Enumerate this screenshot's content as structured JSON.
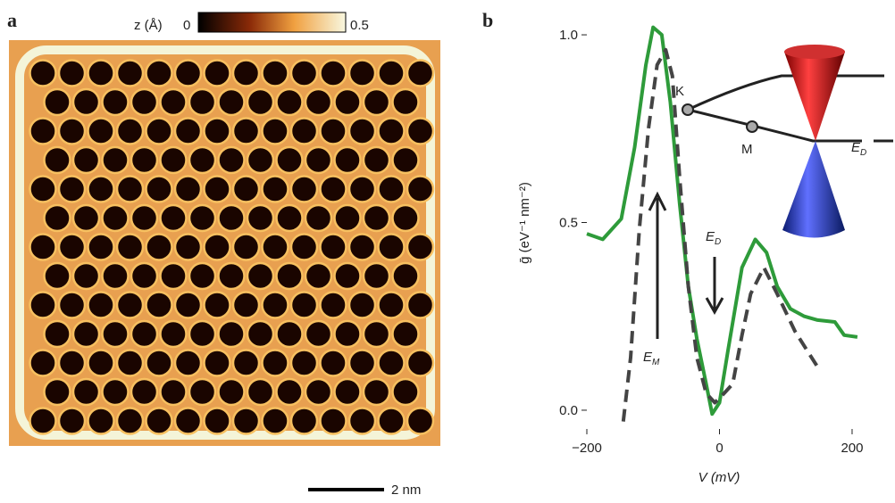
{
  "panel_a": {
    "label": "a",
    "colorbar": {
      "label": "z (Å)",
      "ticks": [
        0,
        0.5
      ]
    },
    "scale_bar": "2 nm"
  },
  "chart_data": {
    "type": "line",
    "panel_label": "b",
    "xlabel": "V (mV)",
    "ylabel": "ḡ (eV⁻¹ nm⁻²)",
    "xlim": [
      -200,
      262
    ],
    "ylim": [
      -0.05,
      1.05
    ],
    "xticks": [
      {
        "value": -200,
        "label": "−200"
      },
      0,
      200
    ],
    "yticks": [
      {
        "value": 0,
        "label": "0.0"
      },
      0.5,
      {
        "value": 1,
        "label": "1.0"
      }
    ],
    "series": [
      {
        "color": "#2e9b3a",
        "style": "solid",
        "x": [
          -200,
          -176,
          -148,
          -128,
          -111,
          -100,
          -87,
          -74,
          -60,
          -47,
          -34,
          -20,
          -11,
          0,
          13,
          34,
          54,
          71,
          87,
          107,
          128,
          148,
          174,
          188,
          208
        ],
        "values": [
          0.47,
          0.455,
          0.51,
          0.7,
          0.92,
          1.02,
          1.0,
          0.82,
          0.55,
          0.33,
          0.19,
          0.07,
          -0.01,
          0.02,
          0.16,
          0.38,
          0.455,
          0.42,
          0.33,
          0.27,
          0.25,
          0.24,
          0.235,
          0.2,
          0.195
        ]
      },
      {
        "color": "#444444",
        "style": "dashed",
        "x": [
          -145,
          -134,
          -121,
          -107,
          -94,
          -81,
          -71,
          -60,
          -47,
          -34,
          -20,
          -7,
          7,
          20,
          34,
          47,
          67,
          87,
          114,
          148
        ],
        "values": [
          -0.03,
          0.14,
          0.48,
          0.75,
          0.92,
          0.96,
          0.89,
          0.62,
          0.33,
          0.14,
          0.045,
          0.02,
          0.045,
          0.07,
          0.2,
          0.31,
          0.38,
          0.31,
          0.21,
          0.115
        ]
      }
    ],
    "annotations": [
      {
        "text": "E",
        "sub": "M"
      },
      {
        "text": "E",
        "sub": "D"
      }
    ],
    "inset": {
      "labels": [
        "K",
        "M"
      ],
      "energy": {
        "text": "E",
        "sub": "D"
      }
    }
  }
}
